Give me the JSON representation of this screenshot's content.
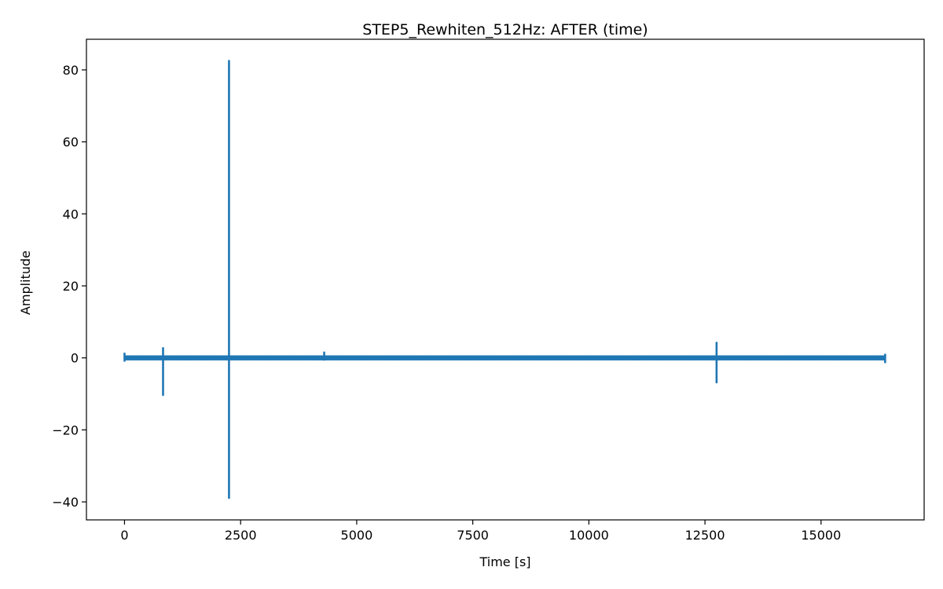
{
  "chart_data": {
    "type": "line",
    "title": "STEP5_Rewhiten_512Hz: AFTER (time)",
    "xlabel": "Time [s]",
    "ylabel": "Amplitude",
    "xlim": [
      -820,
      17220
    ],
    "ylim": [
      -45,
      88.5
    ],
    "x_ticks": [
      0,
      2500,
      5000,
      7500,
      10000,
      12500,
      15000
    ],
    "x_tick_labels": [
      "0",
      "2500",
      "5000",
      "7500",
      "10000",
      "12500",
      "15000"
    ],
    "y_ticks": [
      -40,
      -20,
      0,
      20,
      40,
      60,
      80
    ],
    "y_tick_labels": [
      "−40",
      "−20",
      "0",
      "20",
      "40",
      "60",
      "80"
    ],
    "grid": false,
    "legend": "none",
    "series": [
      {
        "color": "#1f77b4",
        "noise_band": {
          "x_range": [
            0,
            16380
          ],
          "y_range": [
            -0.7,
            0.7
          ]
        },
        "spikes": [
          {
            "x": 0,
            "min": -0.8,
            "max": 1.2
          },
          {
            "x": 830,
            "min": -10.3,
            "max": 2.7
          },
          {
            "x": 2250,
            "min": -38.9,
            "max": 82.5
          },
          {
            "x": 4300,
            "min": -0.5,
            "max": 1.5
          },
          {
            "x": 12750,
            "min": -6.8,
            "max": 4.2
          },
          {
            "x": 16380,
            "min": -1.2,
            "max": 0.9
          }
        ]
      }
    ]
  }
}
